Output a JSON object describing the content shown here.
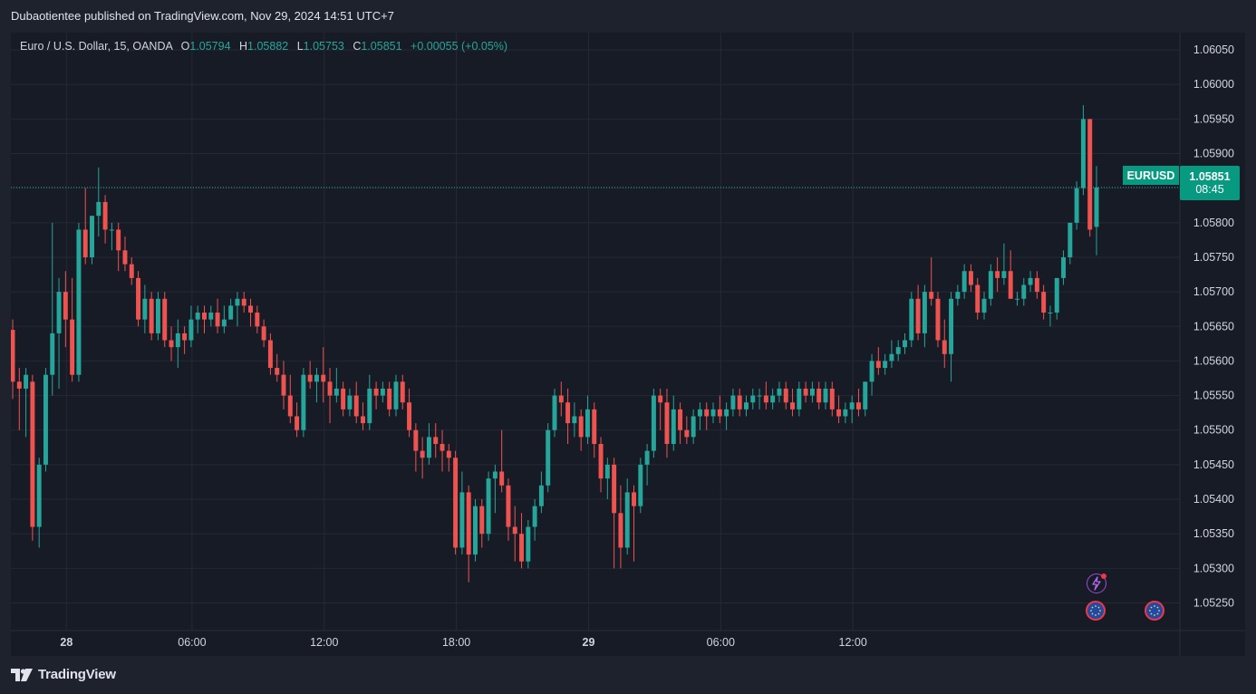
{
  "header": {
    "publisher_line": "Dubaotientee published on TradingView.com, Nov 29, 2024 14:51 UTC+7"
  },
  "legend": {
    "symbol": "Euro / U.S. Dollar, 15, OANDA",
    "open_label": "O",
    "open": "1.05794",
    "high_label": "H",
    "high": "1.05882",
    "low_label": "L",
    "low": "1.05753",
    "close_label": "C",
    "close": "1.05851",
    "change": "+0.00055 (+0.05%)"
  },
  "price_marker": {
    "ticker": "EURUSD",
    "price": "1.05851",
    "countdown": "08:45"
  },
  "footer": {
    "brand": "TradingView"
  },
  "events": {
    "flash_icon": "lightning-icon",
    "eu_flag_icon": "eu-flag-icon"
  },
  "colors": {
    "up": "#26a69a",
    "down": "#ef5350",
    "background": "#171b26",
    "grid": "#252934",
    "axis_text": "#d1d4dc",
    "price_line": "#26a69a"
  },
  "chart_data": {
    "type": "candlestick",
    "symbol": "EURUSD",
    "interval": "15",
    "y_axis": {
      "min": 1.0521,
      "max": 1.06075,
      "ticks": [
        "1.06050",
        "1.06000",
        "1.05950",
        "1.05900",
        "1.05850",
        "1.05800",
        "1.05750",
        "1.05700",
        "1.05650",
        "1.05600",
        "1.05550",
        "1.05500",
        "1.05450",
        "1.05400",
        "1.05350",
        "1.05300",
        "1.05250"
      ]
    },
    "x_axis": {
      "labels": [
        "28",
        "06:00",
        "12:00",
        "18:00",
        "29",
        "06:00",
        "12:00"
      ],
      "bold_labels": [
        "28",
        "29"
      ]
    },
    "last_price": 1.05851,
    "candles": [
      [
        1.05645,
        1.0566,
        1.05545,
        1.0557
      ],
      [
        1.0557,
        1.0559,
        1.055,
        1.0556
      ],
      [
        1.0556,
        1.0559,
        1.0549,
        1.0558
      ],
      [
        1.0557,
        1.0558,
        1.0534,
        1.0536
      ],
      [
        1.0536,
        1.0546,
        1.0533,
        1.0545
      ],
      [
        1.0545,
        1.0559,
        1.0544,
        1.0558
      ],
      [
        1.0558,
        1.058,
        1.0555,
        1.0564
      ],
      [
        1.0564,
        1.0572,
        1.0556,
        1.057
      ],
      [
        1.057,
        1.0573,
        1.0562,
        1.0566
      ],
      [
        1.0566,
        1.0572,
        1.0557,
        1.0558
      ],
      [
        1.0558,
        1.058,
        1.0557,
        1.0579
      ],
      [
        1.0579,
        1.0585,
        1.0574,
        1.0575
      ],
      [
        1.0575,
        1.0581,
        1.0574,
        1.0581
      ],
      [
        1.0581,
        1.0588,
        1.0578,
        1.0583
      ],
      [
        1.0583,
        1.0584,
        1.0577,
        1.0579
      ],
      [
        1.0579,
        1.058,
        1.0576,
        1.0579
      ],
      [
        1.0579,
        1.058,
        1.0573,
        1.0576
      ],
      [
        1.0576,
        1.0578,
        1.0573,
        1.0574
      ],
      [
        1.0574,
        1.0575,
        1.0571,
        1.0572
      ],
      [
        1.0572,
        1.0573,
        1.0565,
        1.0566
      ],
      [
        1.0566,
        1.0571,
        1.0564,
        1.0569
      ],
      [
        1.0569,
        1.057,
        1.0563,
        1.0564
      ],
      [
        1.0564,
        1.057,
        1.0563,
        1.0569
      ],
      [
        1.0569,
        1.057,
        1.0562,
        1.0563
      ],
      [
        1.0563,
        1.0565,
        1.056,
        1.0562
      ],
      [
        1.0562,
        1.0566,
        1.0559,
        1.0564
      ],
      [
        1.0564,
        1.0565,
        1.0561,
        1.0563
      ],
      [
        1.0563,
        1.0568,
        1.0562,
        1.0566
      ],
      [
        1.0566,
        1.0568,
        1.0564,
        1.0567
      ],
      [
        1.0567,
        1.0568,
        1.0564,
        1.0566
      ],
      [
        1.0566,
        1.0568,
        1.0565,
        1.0567
      ],
      [
        1.0567,
        1.0569,
        1.0564,
        1.0565
      ],
      [
        1.0565,
        1.0568,
        1.0564,
        1.0566
      ],
      [
        1.0566,
        1.0569,
        1.0566,
        1.0568
      ],
      [
        1.0568,
        1.057,
        1.0565,
        1.0569
      ],
      [
        1.0569,
        1.057,
        1.0567,
        1.0568
      ],
      [
        1.0568,
        1.0569,
        1.0565,
        1.0567
      ],
      [
        1.0567,
        1.0568,
        1.0564,
        1.0565
      ],
      [
        1.0565,
        1.0566,
        1.0562,
        1.0563
      ],
      [
        1.0563,
        1.0564,
        1.0558,
        1.0559
      ],
      [
        1.0559,
        1.0561,
        1.0557,
        1.0558
      ],
      [
        1.0558,
        1.056,
        1.0553,
        1.0555
      ],
      [
        1.0555,
        1.0558,
        1.0551,
        1.0552
      ],
      [
        1.0552,
        1.0554,
        1.0549,
        1.055
      ],
      [
        1.055,
        1.0559,
        1.0549,
        1.0558
      ],
      [
        1.0558,
        1.056,
        1.0556,
        1.0557
      ],
      [
        1.0557,
        1.0559,
        1.0554,
        1.0558
      ],
      [
        1.0558,
        1.0562,
        1.0554,
        1.0557
      ],
      [
        1.0557,
        1.0559,
        1.0551,
        1.0555
      ],
      [
        1.0555,
        1.0559,
        1.0554,
        1.0556
      ],
      [
        1.0556,
        1.0557,
        1.0552,
        1.0553
      ],
      [
        1.0553,
        1.0556,
        1.0552,
        1.0555
      ],
      [
        1.0555,
        1.0557,
        1.0551,
        1.0552
      ],
      [
        1.0552,
        1.0554,
        1.055,
        1.0551
      ],
      [
        1.0551,
        1.0558,
        1.055,
        1.0556
      ],
      [
        1.0556,
        1.0557,
        1.0553,
        1.0555
      ],
      [
        1.0555,
        1.0557,
        1.0554,
        1.0556
      ],
      [
        1.0556,
        1.0557,
        1.0552,
        1.0553
      ],
      [
        1.0553,
        1.0558,
        1.0552,
        1.0557
      ],
      [
        1.0557,
        1.0558,
        1.0553,
        1.0554
      ],
      [
        1.0554,
        1.0556,
        1.0549,
        1.055
      ],
      [
        1.055,
        1.0551,
        1.0544,
        1.0547
      ],
      [
        1.0547,
        1.0549,
        1.0543,
        1.0546
      ],
      [
        1.0546,
        1.0551,
        1.0545,
        1.0549
      ],
      [
        1.0549,
        1.0551,
        1.0546,
        1.0548
      ],
      [
        1.0548,
        1.055,
        1.0544,
        1.0547
      ],
      [
        1.0547,
        1.0548,
        1.0544,
        1.0546
      ],
      [
        1.0546,
        1.0547,
        1.0532,
        1.0533
      ],
      [
        1.0533,
        1.0544,
        1.0532,
        1.0541
      ],
      [
        1.0541,
        1.0542,
        1.0528,
        1.0532
      ],
      [
        1.0532,
        1.054,
        1.0531,
        1.0539
      ],
      [
        1.0539,
        1.054,
        1.0533,
        1.0535
      ],
      [
        1.0535,
        1.0544,
        1.0534,
        1.0543
      ],
      [
        1.0543,
        1.0545,
        1.0538,
        1.0544
      ],
      [
        1.0544,
        1.055,
        1.0541,
        1.0542
      ],
      [
        1.0542,
        1.0543,
        1.0534,
        1.0536
      ],
      [
        1.0536,
        1.0539,
        1.0531,
        1.0535
      ],
      [
        1.0535,
        1.0538,
        1.053,
        1.0531
      ],
      [
        1.0531,
        1.0537,
        1.053,
        1.0536
      ],
      [
        1.0536,
        1.054,
        1.0534,
        1.0539
      ],
      [
        1.0539,
        1.0544,
        1.0538,
        1.0542
      ],
      [
        1.0542,
        1.0551,
        1.0541,
        1.055
      ],
      [
        1.055,
        1.0556,
        1.0549,
        1.0555
      ],
      [
        1.0555,
        1.0557,
        1.0552,
        1.0554
      ],
      [
        1.0554,
        1.0556,
        1.0548,
        1.0551
      ],
      [
        1.0551,
        1.0554,
        1.0549,
        1.0552
      ],
      [
        1.0552,
        1.0553,
        1.0547,
        1.0549
      ],
      [
        1.0549,
        1.0555,
        1.0548,
        1.0553
      ],
      [
        1.0553,
        1.0554,
        1.0546,
        1.0548
      ],
      [
        1.0548,
        1.0549,
        1.0541,
        1.0543
      ],
      [
        1.0543,
        1.0546,
        1.054,
        1.0545
      ],
      [
        1.0545,
        1.0546,
        1.053,
        1.0538
      ],
      [
        1.0538,
        1.0542,
        1.053,
        1.0533
      ],
      [
        1.0533,
        1.0543,
        1.0532,
        1.0541
      ],
      [
        1.0541,
        1.0542,
        1.0531,
        1.0539
      ],
      [
        1.0539,
        1.0546,
        1.0538,
        1.0545
      ],
      [
        1.0545,
        1.0548,
        1.0542,
        1.0547
      ],
      [
        1.0547,
        1.0556,
        1.0546,
        1.0555
      ],
      [
        1.0555,
        1.0556,
        1.055,
        1.0554
      ],
      [
        1.0554,
        1.0556,
        1.0546,
        1.0548
      ],
      [
        1.0548,
        1.0555,
        1.0547,
        1.0553
      ],
      [
        1.0553,
        1.0554,
        1.0548,
        1.055
      ],
      [
        1.055,
        1.0552,
        1.0548,
        1.0549
      ],
      [
        1.0549,
        1.0553,
        1.0548,
        1.0552
      ],
      [
        1.0552,
        1.0554,
        1.055,
        1.0553
      ],
      [
        1.0553,
        1.0554,
        1.055,
        1.0552
      ],
      [
        1.0552,
        1.0554,
        1.0551,
        1.0553
      ],
      [
        1.0553,
        1.0555,
        1.0551,
        1.0552
      ],
      [
        1.0552,
        1.0554,
        1.055,
        1.0553
      ],
      [
        1.0553,
        1.0556,
        1.0552,
        1.0555
      ],
      [
        1.0555,
        1.0556,
        1.0552,
        1.0553
      ],
      [
        1.0553,
        1.0555,
        1.0552,
        1.0554
      ],
      [
        1.0554,
        1.0556,
        1.0553,
        1.0555
      ],
      [
        1.0555,
        1.0556,
        1.0553,
        1.0555
      ],
      [
        1.0555,
        1.0557,
        1.0553,
        1.0554
      ],
      [
        1.0554,
        1.0556,
        1.0553,
        1.0555
      ],
      [
        1.0555,
        1.0557,
        1.0554,
        1.0556
      ],
      [
        1.0556,
        1.0557,
        1.0553,
        1.0554
      ],
      [
        1.0554,
        1.0556,
        1.0552,
        1.0553
      ],
      [
        1.0553,
        1.0557,
        1.0552,
        1.0556
      ],
      [
        1.0556,
        1.0557,
        1.0554,
        1.0555
      ],
      [
        1.0555,
        1.0557,
        1.0554,
        1.0556
      ],
      [
        1.0556,
        1.0557,
        1.0553,
        1.0554
      ],
      [
        1.0554,
        1.0557,
        1.0553,
        1.0556
      ],
      [
        1.0556,
        1.0557,
        1.0552,
        1.0553
      ],
      [
        1.0553,
        1.0555,
        1.0551,
        1.0552
      ],
      [
        1.0552,
        1.0554,
        1.0551,
        1.0553
      ],
      [
        1.0553,
        1.0555,
        1.0551,
        1.0554
      ],
      [
        1.0554,
        1.0556,
        1.0552,
        1.0553
      ],
      [
        1.0553,
        1.0557,
        1.0552,
        1.0557
      ],
      [
        1.0557,
        1.0561,
        1.0555,
        1.056
      ],
      [
        1.056,
        1.0562,
        1.0558,
        1.0559
      ],
      [
        1.0559,
        1.0561,
        1.0558,
        1.056
      ],
      [
        1.056,
        1.0563,
        1.0559,
        1.0561
      ],
      [
        1.0561,
        1.0563,
        1.056,
        1.0562
      ],
      [
        1.0562,
        1.0564,
        1.0561,
        1.0563
      ],
      [
        1.0563,
        1.057,
        1.0562,
        1.0569
      ],
      [
        1.0569,
        1.0571,
        1.0563,
        1.0564
      ],
      [
        1.0564,
        1.0571,
        1.0562,
        1.057
      ],
      [
        1.057,
        1.0575,
        1.0568,
        1.0569
      ],
      [
        1.0569,
        1.057,
        1.0562,
        1.0563
      ],
      [
        1.0563,
        1.0566,
        1.0559,
        1.0561
      ],
      [
        1.0561,
        1.057,
        1.0557,
        1.0569
      ],
      [
        1.0569,
        1.0571,
        1.0568,
        1.057
      ],
      [
        1.057,
        1.0574,
        1.0569,
        1.0573
      ],
      [
        1.0573,
        1.0574,
        1.057,
        1.0571
      ],
      [
        1.0571,
        1.0572,
        1.0566,
        1.0567
      ],
      [
        1.0567,
        1.057,
        1.0566,
        1.0569
      ],
      [
        1.0569,
        1.0574,
        1.0568,
        1.0573
      ],
      [
        1.0573,
        1.0575,
        1.057,
        1.0572
      ],
      [
        1.0572,
        1.0577,
        1.0571,
        1.0573
      ],
      [
        1.0573,
        1.0576,
        1.0569,
        1.0569
      ],
      [
        1.0569,
        1.057,
        1.0568,
        1.0569
      ],
      [
        1.0569,
        1.0572,
        1.0568,
        1.0571
      ],
      [
        1.0571,
        1.0573,
        1.057,
        1.0572
      ],
      [
        1.0572,
        1.0573,
        1.0569,
        1.057
      ],
      [
        1.057,
        1.0571,
        1.0566,
        1.0567
      ],
      [
        1.0567,
        1.0568,
        1.0565,
        1.0567
      ],
      [
        1.0567,
        1.0572,
        1.0566,
        1.0572
      ],
      [
        1.0572,
        1.0576,
        1.0571,
        1.0575
      ],
      [
        1.0575,
        1.058,
        1.0574,
        1.058
      ],
      [
        1.058,
        1.0586,
        1.0579,
        1.0585
      ],
      [
        1.0585,
        1.0597,
        1.0584,
        1.0595
      ],
      [
        1.0595,
        1.0595,
        1.0578,
        1.0579
      ],
      [
        1.05794,
        1.05882,
        1.05753,
        1.05851
      ]
    ]
  }
}
